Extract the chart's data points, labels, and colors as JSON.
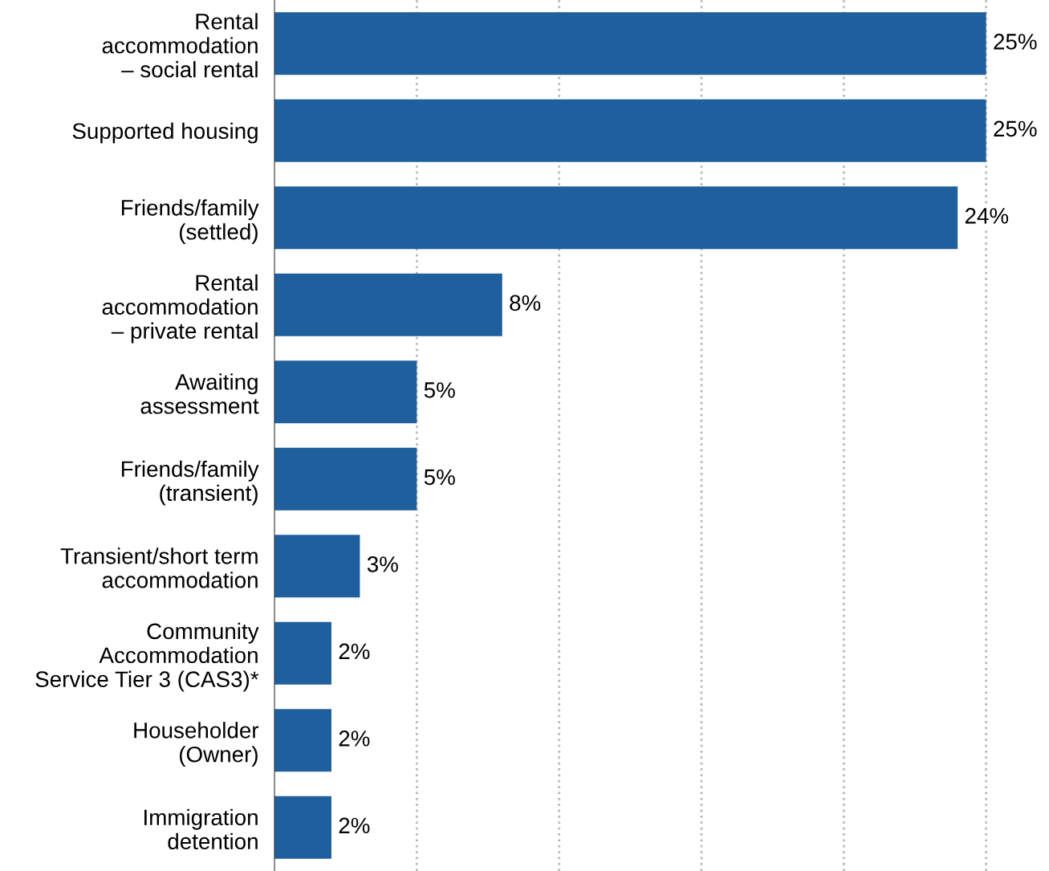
{
  "chart_data": {
    "type": "bar",
    "orientation": "horizontal",
    "relative": false,
    "categories": [
      "Rental\naccommodation\n– social rental",
      "Supported housing",
      "Friends/family\n(settled)",
      "Rental\naccommodation\n– private rental",
      "Awaiting\nassessment",
      "Friends/family\n(transient)",
      "Transient/short term\naccommodation",
      "Community\nAccommodation\nService Tier 3 (CAS3)*",
      "Householder\n(Owner)",
      "Immigration\ndetention"
    ],
    "values": [
      25,
      25,
      24,
      8,
      5,
      5,
      3,
      2,
      2,
      2
    ],
    "value_labels": [
      "25%",
      "25%",
      "24%",
      "8%",
      "5%",
      "5%",
      "3%",
      "2%",
      "2%",
      "2%"
    ],
    "color": "#1f5f9e",
    "xticks": [
      {
        "value": 5,
        "label": null
      },
      {
        "value": 10,
        "label": null
      },
      {
        "value": 15,
        "label": null
      },
      {
        "value": 20,
        "label": null
      },
      {
        "value": 25,
        "label": null
      }
    ],
    "grid": "x"
  }
}
